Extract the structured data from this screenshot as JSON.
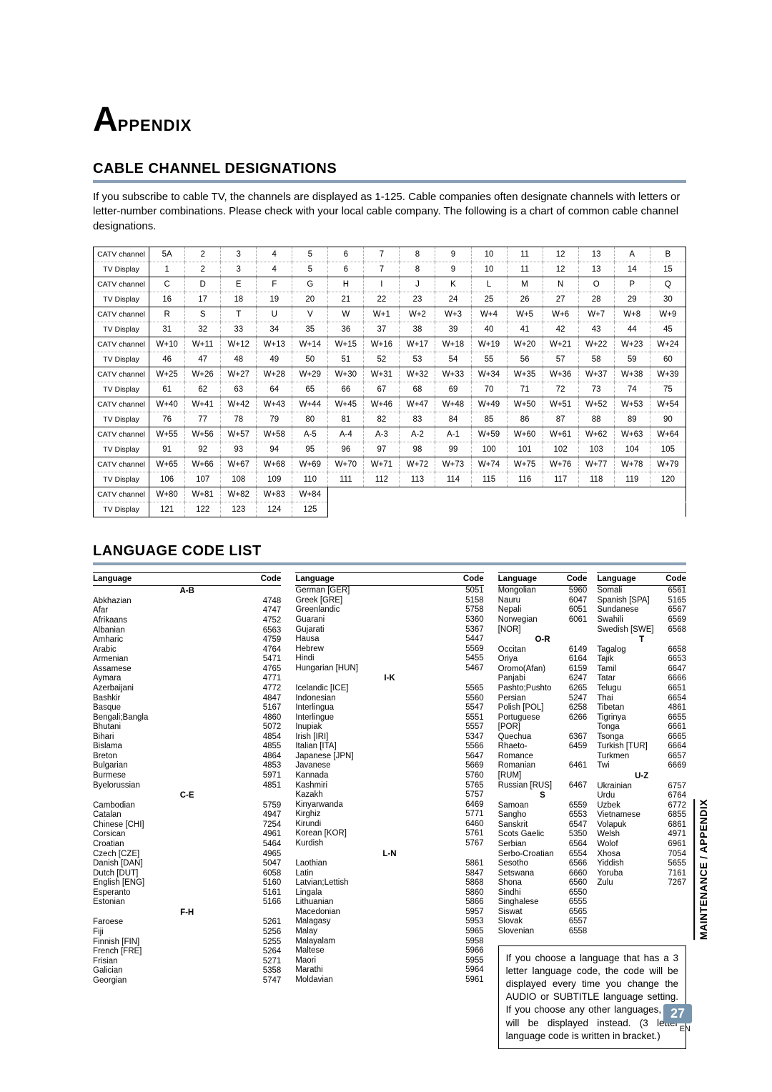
{
  "title": {
    "bigA": "A",
    "rest": "PPENDIX"
  },
  "section1": {
    "heading": "CABLE CHANNEL DESIGNATIONS",
    "intro": "If you subscribe to cable TV, the channels are displayed as 1-125. Cable companies often designate channels with letters or letter-number combinations. Please check with your local cable company. The following is a chart of common cable channel designations."
  },
  "catv": {
    "labels": {
      "catv": "CATV channel",
      "tv": "TV Display"
    },
    "rows": [
      {
        "catv": [
          "5A",
          "2",
          "3",
          "4",
          "5",
          "6",
          "7",
          "8",
          "9",
          "10",
          "11",
          "12",
          "13",
          "A",
          "B"
        ],
        "tv": [
          "1",
          "2",
          "3",
          "4",
          "5",
          "6",
          "7",
          "8",
          "9",
          "10",
          "11",
          "12",
          "13",
          "14",
          "15"
        ]
      },
      {
        "catv": [
          "C",
          "D",
          "E",
          "F",
          "G",
          "H",
          "I",
          "J",
          "K",
          "L",
          "M",
          "N",
          "O",
          "P",
          "Q"
        ],
        "tv": [
          "16",
          "17",
          "18",
          "19",
          "20",
          "21",
          "22",
          "23",
          "24",
          "25",
          "26",
          "27",
          "28",
          "29",
          "30"
        ]
      },
      {
        "catv": [
          "R",
          "S",
          "T",
          "U",
          "V",
          "W",
          "W+1",
          "W+2",
          "W+3",
          "W+4",
          "W+5",
          "W+6",
          "W+7",
          "W+8",
          "W+9"
        ],
        "tv": [
          "31",
          "32",
          "33",
          "34",
          "35",
          "36",
          "37",
          "38",
          "39",
          "40",
          "41",
          "42",
          "43",
          "44",
          "45"
        ]
      },
      {
        "catv": [
          "W+10",
          "W+11",
          "W+12",
          "W+13",
          "W+14",
          "W+15",
          "W+16",
          "W+17",
          "W+18",
          "W+19",
          "W+20",
          "W+21",
          "W+22",
          "W+23",
          "W+24"
        ],
        "tv": [
          "46",
          "47",
          "48",
          "49",
          "50",
          "51",
          "52",
          "53",
          "54",
          "55",
          "56",
          "57",
          "58",
          "59",
          "60"
        ]
      },
      {
        "catv": [
          "W+25",
          "W+26",
          "W+27",
          "W+28",
          "W+29",
          "W+30",
          "W+31",
          "W+32",
          "W+33",
          "W+34",
          "W+35",
          "W+36",
          "W+37",
          "W+38",
          "W+39"
        ],
        "tv": [
          "61",
          "62",
          "63",
          "64",
          "65",
          "66",
          "67",
          "68",
          "69",
          "70",
          "71",
          "72",
          "73",
          "74",
          "75"
        ]
      },
      {
        "catv": [
          "W+40",
          "W+41",
          "W+42",
          "W+43",
          "W+44",
          "W+45",
          "W+46",
          "W+47",
          "W+48",
          "W+49",
          "W+50",
          "W+51",
          "W+52",
          "W+53",
          "W+54"
        ],
        "tv": [
          "76",
          "77",
          "78",
          "79",
          "80",
          "81",
          "82",
          "83",
          "84",
          "85",
          "86",
          "87",
          "88",
          "89",
          "90"
        ]
      },
      {
        "catv": [
          "W+55",
          "W+56",
          "W+57",
          "W+58",
          "A-5",
          "A-4",
          "A-3",
          "A-2",
          "A-1",
          "W+59",
          "W+60",
          "W+61",
          "W+62",
          "W+63",
          "W+64"
        ],
        "tv": [
          "91",
          "92",
          "93",
          "94",
          "95",
          "96",
          "97",
          "98",
          "99",
          "100",
          "101",
          "102",
          "103",
          "104",
          "105"
        ]
      },
      {
        "catv": [
          "W+65",
          "W+66",
          "W+67",
          "W+68",
          "W+69",
          "W+70",
          "W+71",
          "W+72",
          "W+73",
          "W+74",
          "W+75",
          "W+76",
          "W+77",
          "W+78",
          "W+79"
        ],
        "tv": [
          "106",
          "107",
          "108",
          "109",
          "110",
          "111",
          "112",
          "113",
          "114",
          "115",
          "116",
          "117",
          "118",
          "119",
          "120"
        ]
      },
      {
        "catv": [
          "W+80",
          "W+81",
          "W+82",
          "W+83",
          "W+84"
        ],
        "tv": [
          "121",
          "122",
          "123",
          "124",
          "125"
        ]
      }
    ]
  },
  "section2": {
    "heading": "LANGUAGE CODE LIST"
  },
  "langHeaders": {
    "lang": "Language",
    "code": "Code"
  },
  "langCols": [
    [
      {
        "letter": "A-B"
      },
      {
        "n": "Abkhazian",
        "c": "4748"
      },
      {
        "n": "Afar",
        "c": "4747"
      },
      {
        "n": "Afrikaans",
        "c": "4752"
      },
      {
        "n": "Albanian",
        "c": "6563"
      },
      {
        "n": "Amharic",
        "c": "4759"
      },
      {
        "n": "Arabic",
        "c": "4764"
      },
      {
        "n": "Armenian",
        "c": "5471"
      },
      {
        "n": "Assamese",
        "c": "4765"
      },
      {
        "n": "Aymara",
        "c": "4771"
      },
      {
        "n": "Azerbaijani",
        "c": "4772"
      },
      {
        "n": "Bashkir",
        "c": "4847"
      },
      {
        "n": "Basque",
        "c": "5167"
      },
      {
        "n": "Bengali;Bangla",
        "c": "4860"
      },
      {
        "n": "Bhutani",
        "c": "5072"
      },
      {
        "n": "Bihari",
        "c": "4854"
      },
      {
        "n": "Bislama",
        "c": "4855"
      },
      {
        "n": "Breton",
        "c": "4864"
      },
      {
        "n": "Bulgarian",
        "c": "4853"
      },
      {
        "n": "Burmese",
        "c": "5971"
      },
      {
        "n": "Byelorussian",
        "c": "4851"
      },
      {
        "letter": "C-E"
      },
      {
        "n": "Cambodian",
        "c": "5759"
      },
      {
        "n": "Catalan",
        "c": "4947"
      },
      {
        "n": "Chinese [CHI]",
        "c": "7254"
      },
      {
        "n": "Corsican",
        "c": "4961"
      },
      {
        "n": "Croatian",
        "c": "5464"
      },
      {
        "n": "Czech [CZE]",
        "c": "4965"
      },
      {
        "n": "Danish [DAN]",
        "c": "5047"
      },
      {
        "n": "Dutch [DUT]",
        "c": "6058"
      },
      {
        "n": "English [ENG]",
        "c": "5160"
      },
      {
        "n": "Esperanto",
        "c": "5161"
      },
      {
        "n": "Estonian",
        "c": "5166"
      },
      {
        "letter": "F-H"
      },
      {
        "n": "Faroese",
        "c": "5261"
      },
      {
        "n": "Fiji",
        "c": "5256"
      },
      {
        "n": "Finnish [FIN]",
        "c": "5255"
      },
      {
        "n": "French [FRE]",
        "c": "5264"
      },
      {
        "n": "Frisian",
        "c": "5271"
      },
      {
        "n": "Galician",
        "c": "5358"
      },
      {
        "n": "Georgian",
        "c": "5747"
      }
    ],
    [
      {
        "n": "German [GER]",
        "c": "5051"
      },
      {
        "n": "Greek [GRE]",
        "c": "5158"
      },
      {
        "n": "Greenlandic",
        "c": "5758"
      },
      {
        "n": "Guarani",
        "c": "5360"
      },
      {
        "n": "Gujarati",
        "c": "5367"
      },
      {
        "n": "Hausa",
        "c": "5447"
      },
      {
        "n": "Hebrew",
        "c": "5569"
      },
      {
        "n": "Hindi",
        "c": "5455"
      },
      {
        "n": "Hungarian [HUN]",
        "c": "5467"
      },
      {
        "letter": "I-K"
      },
      {
        "n": "Icelandic [ICE]",
        "c": "5565"
      },
      {
        "n": "Indonesian",
        "c": "5560"
      },
      {
        "n": "Interlingua",
        "c": "5547"
      },
      {
        "n": "Interlingue",
        "c": "5551"
      },
      {
        "n": "Inupiak",
        "c": "5557"
      },
      {
        "n": "Irish [IRI]",
        "c": "5347"
      },
      {
        "n": "Italian [ITA]",
        "c": "5566"
      },
      {
        "n": "Japanese [JPN]",
        "c": "5647"
      },
      {
        "n": "Javanese",
        "c": "5669"
      },
      {
        "n": "Kannada",
        "c": "5760"
      },
      {
        "n": "Kashmiri",
        "c": "5765"
      },
      {
        "n": "Kazakh",
        "c": "5757"
      },
      {
        "n": "Kinyarwanda",
        "c": "6469"
      },
      {
        "n": "Kirghiz",
        "c": "5771"
      },
      {
        "n": "Kirundi",
        "c": "6460"
      },
      {
        "n": "Korean [KOR]",
        "c": "5761"
      },
      {
        "n": "Kurdish",
        "c": "5767"
      },
      {
        "letter": "L-N"
      },
      {
        "n": "Laothian",
        "c": "5861"
      },
      {
        "n": "Latin",
        "c": "5847"
      },
      {
        "n": "Latvian;Lettish",
        "c": "5868"
      },
      {
        "n": "Lingala",
        "c": "5860"
      },
      {
        "n": "Lithuanian",
        "c": "5866"
      },
      {
        "n": "Macedonian",
        "c": "5957"
      },
      {
        "n": "Malagasy",
        "c": "5953"
      },
      {
        "n": "Malay",
        "c": "5965"
      },
      {
        "n": "Malayalam",
        "c": "5958"
      },
      {
        "n": "Maltese",
        "c": "5966"
      },
      {
        "n": "Maori",
        "c": "5955"
      },
      {
        "n": "Marathi",
        "c": "5964"
      },
      {
        "n": "Moldavian",
        "c": "5961"
      }
    ],
    [
      {
        "n": "Mongolian",
        "c": "5960"
      },
      {
        "n": "Nauru",
        "c": "6047"
      },
      {
        "n": "Nepali",
        "c": "6051"
      },
      {
        "n": "Norwegian [NOR]",
        "c": "6061"
      },
      {
        "letter": "O-R"
      },
      {
        "n": "Occitan",
        "c": "6149"
      },
      {
        "n": "Oriya",
        "c": "6164"
      },
      {
        "n": "Oromo(Afan)",
        "c": "6159"
      },
      {
        "n": "Panjabi",
        "c": "6247"
      },
      {
        "n": "Pashto;Pushto",
        "c": "6265"
      },
      {
        "n": "Persian",
        "c": "5247"
      },
      {
        "n": "Polish [POL]",
        "c": "6258"
      },
      {
        "n": "Portuguese [POR]",
        "c": "6266"
      },
      {
        "n": "Quechua",
        "c": "6367"
      },
      {
        "n": "Rhaeto-Romance",
        "c": "6459"
      },
      {
        "n": "Romanian [RUM]",
        "c": "6461"
      },
      {
        "n": "Russian [RUS]",
        "c": "6467"
      },
      {
        "letter": "S"
      },
      {
        "n": "Samoan",
        "c": "6559"
      },
      {
        "n": "Sangho",
        "c": "6553"
      },
      {
        "n": "Sanskrit",
        "c": "6547"
      },
      {
        "n": "Scots Gaelic",
        "c": "5350"
      },
      {
        "n": "Serbian",
        "c": "6564"
      },
      {
        "n": "Serbo-Croatian",
        "c": "6554"
      },
      {
        "n": "Sesotho",
        "c": "6566"
      },
      {
        "n": "Setswana",
        "c": "6660"
      },
      {
        "n": "Shona",
        "c": "6560"
      },
      {
        "n": "Sindhi",
        "c": "6550"
      },
      {
        "n": "Singhalese",
        "c": "6555"
      },
      {
        "n": "Siswat",
        "c": "6565"
      },
      {
        "n": "Slovak",
        "c": "6557"
      },
      {
        "n": "Slovenian",
        "c": "6558"
      }
    ],
    [
      {
        "n": "Somali",
        "c": "6561"
      },
      {
        "n": "Spanish [SPA]",
        "c": "5165"
      },
      {
        "n": "Sundanese",
        "c": "6567"
      },
      {
        "n": "Swahili",
        "c": "6569"
      },
      {
        "n": "Swedish [SWE]",
        "c": "6568"
      },
      {
        "letter": "T"
      },
      {
        "n": "Tagalog",
        "c": "6658"
      },
      {
        "n": "Tajik",
        "c": "6653"
      },
      {
        "n": "Tamil",
        "c": "6647"
      },
      {
        "n": "Tatar",
        "c": "6666"
      },
      {
        "n": "Telugu",
        "c": "6651"
      },
      {
        "n": "Thai",
        "c": "6654"
      },
      {
        "n": "Tibetan",
        "c": "4861"
      },
      {
        "n": "Tigrinya",
        "c": "6655"
      },
      {
        "n": "Tonga",
        "c": "6661"
      },
      {
        "n": "Tsonga",
        "c": "6665"
      },
      {
        "n": "Turkish [TUR]",
        "c": "6664"
      },
      {
        "n": "Turkmen",
        "c": "6657"
      },
      {
        "n": "Twi",
        "c": "6669"
      },
      {
        "letter": "U-Z"
      },
      {
        "n": "Ukrainian",
        "c": "6757"
      },
      {
        "n": "Urdu",
        "c": "6764"
      },
      {
        "n": "Uzbek",
        "c": "6772"
      },
      {
        "n": "Vietnamese",
        "c": "6855"
      },
      {
        "n": "Volapuk",
        "c": "6861"
      },
      {
        "n": "Welsh",
        "c": "4971"
      },
      {
        "n": "Wolof",
        "c": "6961"
      },
      {
        "n": "Xhosa",
        "c": "7054"
      },
      {
        "n": "Yiddish",
        "c": "5655"
      },
      {
        "n": "Yoruba",
        "c": "7161"
      },
      {
        "n": "Zulu",
        "c": "7267"
      }
    ]
  ],
  "note": "If you choose a language that has a 3 letter language code, the code will be displayed every time you change the AUDIO or SUBTITLE language setting. If you choose any other languages, '---' will be displayed instead. (3 letter language code is written in bracket.)",
  "sideTab": "MAINTENANCE / APPENDIX",
  "page": {
    "num": "27",
    "en": "EN"
  }
}
